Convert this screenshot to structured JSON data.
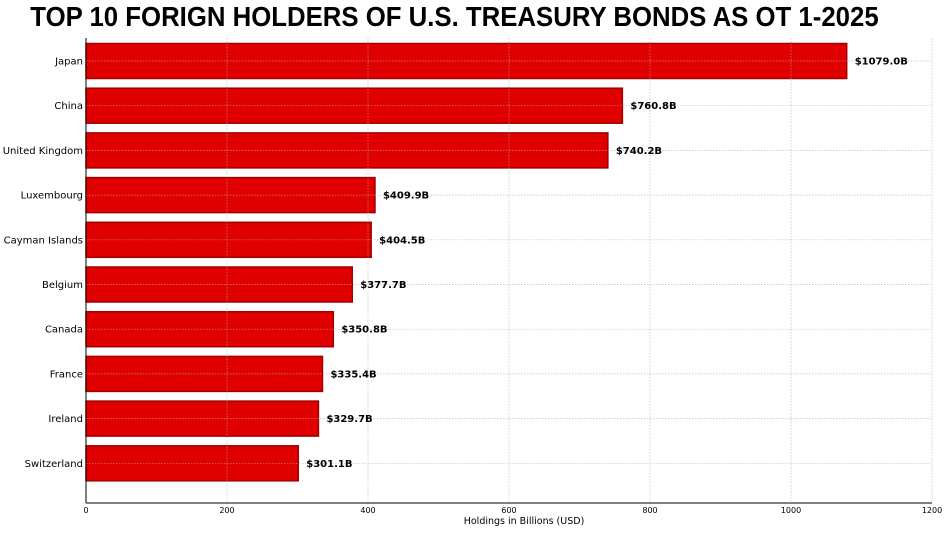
{
  "chart_data": {
    "type": "bar",
    "orientation": "horizontal",
    "title": "TOP 10 FORIGN HOLDERS OF U.S. TREASURY BONDS AS OT 1-2025",
    "xlabel": "Holdings in Billions (USD)",
    "ylabel": "",
    "categories": [
      "Japan",
      "China",
      "United Kingdom",
      "Luxembourg",
      "Cayman Islands",
      "Belgium",
      "Canada",
      "France",
      "Ireland",
      "Switzerland"
    ],
    "values": [
      1079.0,
      760.8,
      740.2,
      409.9,
      404.5,
      377.7,
      350.8,
      335.4,
      329.7,
      301.1
    ],
    "data_labels": [
      "$1079.0B",
      "$760.8B",
      "$740.2B",
      "$409.9B",
      "$404.5B",
      "$377.7B",
      "$350.8B",
      "$335.4B",
      "$329.7B",
      "$301.1B"
    ],
    "xlim": [
      0,
      1200
    ],
    "xticks": [
      0,
      200,
      400,
      600,
      800,
      1000,
      1200
    ],
    "grid": true,
    "bar_color": "#e00000",
    "bar_edge_color": "#a00000"
  }
}
